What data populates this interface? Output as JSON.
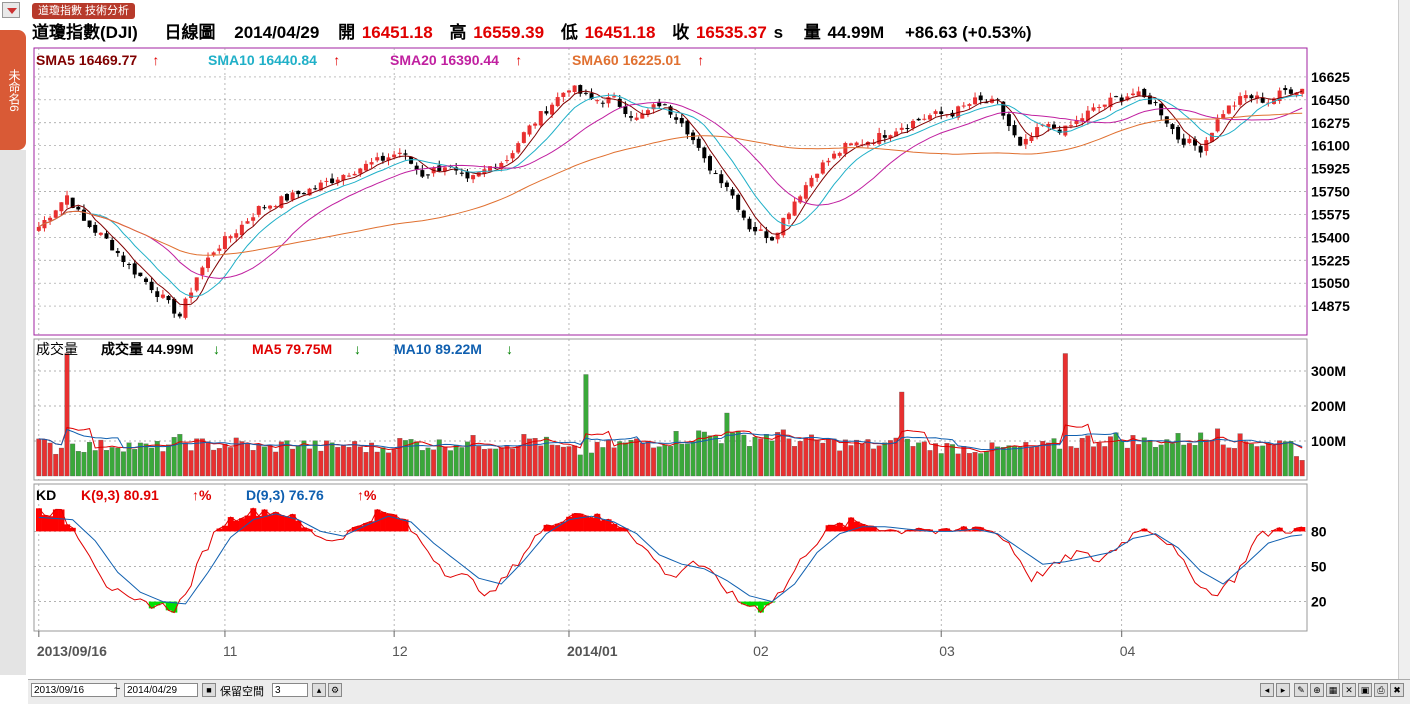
{
  "breadcrumb": "道瓊指數 技術分析",
  "side_tab_label": "未命名6",
  "header": {
    "name": "道瓊指數(DJI)",
    "period": "日線圖",
    "date": "2014/04/29",
    "open_label": "開",
    "open": "16451.18",
    "high_label": "高",
    "high": "16559.39",
    "low_label": "低",
    "low": "16451.18",
    "close_label": "收",
    "close": "16535.37",
    "close_suffix": "s",
    "vol_label": "量",
    "vol": "44.99M",
    "change": "+86.63 (+0.53%)"
  },
  "price_legend": [
    {
      "label": "SMA5 16469.77",
      "arrow": "↑",
      "color": "#800000"
    },
    {
      "label": "SMA10 16440.84",
      "arrow": "↑",
      "color": "#20b0c8"
    },
    {
      "label": "SMA20 16390.44",
      "arrow": "↑",
      "color": "#c020a0"
    },
    {
      "label": "SMA60 16225.01",
      "arrow": "↑",
      "color": "#e07030"
    }
  ],
  "volume_legend": {
    "title": "成交量",
    "items": [
      {
        "label": "成交量 44.99M",
        "arrow": "↓",
        "color": "#000"
      },
      {
        "label": "MA5 79.75M",
        "arrow": "↓",
        "color": "#e00000"
      },
      {
        "label": "MA10 89.22M",
        "arrow": "↓",
        "color": "#1060b0"
      }
    ]
  },
  "kd_legend": {
    "title": "KD",
    "items": [
      {
        "label": "K(9,3) 80.91",
        "arrow": "↑%",
        "color": "#e00000"
      },
      {
        "label": "D(9,3) 76.76",
        "arrow": "↑%",
        "color": "#1060b0"
      }
    ]
  },
  "bottom": {
    "start_date": "2013/09/16",
    "end_date": "2014/04/29",
    "reserve_label": "保留空間",
    "reserve_value": "3",
    "tilde": "~"
  },
  "colors": {
    "up": "#e83030",
    "down": "#000000",
    "vol_up": "#e83030",
    "vol_down": "#3aa83a",
    "kd_up_fill": "#ff0000",
    "kd_down_fill": "#00e000",
    "frame": "#a020a0"
  },
  "chart_data": {
    "type": "candlestick",
    "x_ticks": [
      "2013/09/16",
      "11",
      "12",
      "2014/01",
      "02",
      "03",
      "04"
    ],
    "x_tick_index": [
      0,
      33,
      63,
      94,
      127,
      160,
      192
    ],
    "price_axis": {
      "ticks": [
        16625,
        16450,
        16275,
        16100,
        15925,
        15750,
        15575,
        15400,
        15225,
        15050,
        14875
      ],
      "ylim": [
        14700,
        16800
      ]
    },
    "volume_axis": {
      "ticks": [
        "300M",
        "200M",
        "100M"
      ],
      "tick_values": [
        300,
        200,
        100
      ],
      "ylim": [
        0,
        380
      ]
    },
    "kd_axis": {
      "ticks": [
        80,
        50,
        20
      ],
      "ylim": [
        0,
        100
      ]
    },
    "close_anchors": [
      [
        0,
        15480
      ],
      [
        5,
        15720
      ],
      [
        8,
        15520
      ],
      [
        12,
        15380
      ],
      [
        16,
        15180
      ],
      [
        20,
        15020
      ],
      [
        25,
        14800
      ],
      [
        28,
        15100
      ],
      [
        31,
        15300
      ],
      [
        35,
        15450
      ],
      [
        39,
        15620
      ],
      [
        44,
        15700
      ],
      [
        49,
        15780
      ],
      [
        55,
        15900
      ],
      [
        60,
        15980
      ],
      [
        64,
        16050
      ],
      [
        68,
        15880
      ],
      [
        72,
        15950
      ],
      [
        76,
        15820
      ],
      [
        80,
        15940
      ],
      [
        83,
        16000
      ],
      [
        86,
        16190
      ],
      [
        90,
        16380
      ],
      [
        94,
        16550
      ],
      [
        98,
        16450
      ],
      [
        102,
        16450
      ],
      [
        106,
        16300
      ],
      [
        110,
        16420
      ],
      [
        114,
        16300
      ],
      [
        118,
        15980
      ],
      [
        122,
        15800
      ],
      [
        126,
        15480
      ],
      [
        130,
        15400
      ],
      [
        134,
        15680
      ],
      [
        138,
        15920
      ],
      [
        143,
        16090
      ],
      [
        148,
        16150
      ],
      [
        153,
        16250
      ],
      [
        158,
        16330
      ],
      [
        162,
        16350
      ],
      [
        166,
        16440
      ],
      [
        170,
        16420
      ],
      [
        174,
        16080
      ],
      [
        178,
        16250
      ],
      [
        182,
        16220
      ],
      [
        186,
        16350
      ],
      [
        190,
        16440
      ],
      [
        194,
        16500
      ],
      [
        198,
        16420
      ],
      [
        202,
        16160
      ],
      [
        206,
        16080
      ],
      [
        210,
        16360
      ],
      [
        214,
        16480
      ],
      [
        218,
        16440
      ],
      [
        221,
        16520
      ],
      [
        224,
        16535
      ]
    ],
    "volume_anchors": [
      [
        0,
        95
      ],
      [
        3,
        80
      ],
      [
        6,
        90
      ],
      [
        10,
        85
      ],
      [
        14,
        95
      ],
      [
        20,
        80
      ],
      [
        25,
        100
      ],
      [
        30,
        90
      ],
      [
        35,
        95
      ],
      [
        40,
        80
      ],
      [
        45,
        95
      ],
      [
        50,
        85
      ],
      [
        55,
        90
      ],
      [
        60,
        80
      ],
      [
        65,
        100
      ],
      [
        70,
        90
      ],
      [
        75,
        100
      ],
      [
        80,
        95
      ],
      [
        84,
        100
      ],
      [
        88,
        110
      ],
      [
        92,
        80
      ],
      [
        96,
        70
      ],
      [
        100,
        85
      ],
      [
        104,
        95
      ],
      [
        108,
        100
      ],
      [
        112,
        110
      ],
      [
        118,
        120
      ],
      [
        124,
        110
      ],
      [
        130,
        120
      ],
      [
        136,
        100
      ],
      [
        142,
        95
      ],
      [
        148,
        90
      ],
      [
        154,
        95
      ],
      [
        160,
        85
      ],
      [
        166,
        80
      ],
      [
        172,
        80
      ],
      [
        178,
        85
      ],
      [
        184,
        100
      ],
      [
        190,
        110
      ],
      [
        196,
        100
      ],
      [
        202,
        105
      ],
      [
        208,
        110
      ],
      [
        214,
        100
      ],
      [
        218,
        100
      ],
      [
        222,
        95
      ],
      [
        224,
        45
      ]
    ],
    "volume_spikes": [
      [
        5,
        350
      ],
      [
        97,
        290
      ],
      [
        122,
        180
      ],
      [
        153,
        240
      ],
      [
        182,
        350
      ],
      [
        209,
        135
      ]
    ],
    "kd_k_anchors": [
      [
        0,
        98
      ],
      [
        4,
        95
      ],
      [
        8,
        70
      ],
      [
        12,
        35
      ],
      [
        16,
        20
      ],
      [
        20,
        18
      ],
      [
        24,
        14
      ],
      [
        26,
        25
      ],
      [
        29,
        60
      ],
      [
        32,
        85
      ],
      [
        36,
        95
      ],
      [
        40,
        98
      ],
      [
        44,
        95
      ],
      [
        48,
        80
      ],
      [
        52,
        72
      ],
      [
        56,
        82
      ],
      [
        60,
        96
      ],
      [
        64,
        92
      ],
      [
        68,
        70
      ],
      [
        72,
        46
      ],
      [
        76,
        40
      ],
      [
        80,
        25
      ],
      [
        84,
        48
      ],
      [
        88,
        75
      ],
      [
        92,
        90
      ],
      [
        96,
        97
      ],
      [
        100,
        90
      ],
      [
        104,
        84
      ],
      [
        108,
        62
      ],
      [
        112,
        40
      ],
      [
        116,
        55
      ],
      [
        120,
        40
      ],
      [
        124,
        20
      ],
      [
        128,
        14
      ],
      [
        132,
        30
      ],
      [
        136,
        62
      ],
      [
        140,
        82
      ],
      [
        144,
        88
      ],
      [
        148,
        85
      ],
      [
        152,
        80
      ],
      [
        156,
        84
      ],
      [
        160,
        78
      ],
      [
        164,
        82
      ],
      [
        168,
        84
      ],
      [
        172,
        70
      ],
      [
        176,
        40
      ],
      [
        180,
        50
      ],
      [
        184,
        62
      ],
      [
        188,
        55
      ],
      [
        192,
        70
      ],
      [
        196,
        85
      ],
      [
        200,
        72
      ],
      [
        204,
        45
      ],
      [
        208,
        25
      ],
      [
        212,
        40
      ],
      [
        216,
        75
      ],
      [
        220,
        82
      ],
      [
        224,
        81
      ]
    ],
    "kd_d_anchors": [
      [
        0,
        92
      ],
      [
        6,
        90
      ],
      [
        10,
        72
      ],
      [
        14,
        45
      ],
      [
        18,
        28
      ],
      [
        22,
        20
      ],
      [
        26,
        18
      ],
      [
        30,
        45
      ],
      [
        34,
        75
      ],
      [
        38,
        90
      ],
      [
        42,
        95
      ],
      [
        46,
        90
      ],
      [
        50,
        80
      ],
      [
        54,
        76
      ],
      [
        58,
        85
      ],
      [
        62,
        93
      ],
      [
        66,
        88
      ],
      [
        70,
        70
      ],
      [
        74,
        55
      ],
      [
        78,
        40
      ],
      [
        82,
        35
      ],
      [
        86,
        55
      ],
      [
        90,
        78
      ],
      [
        94,
        90
      ],
      [
        98,
        93
      ],
      [
        102,
        88
      ],
      [
        106,
        78
      ],
      [
        110,
        60
      ],
      [
        114,
        52
      ],
      [
        118,
        48
      ],
      [
        122,
        38
      ],
      [
        126,
        25
      ],
      [
        130,
        20
      ],
      [
        134,
        35
      ],
      [
        138,
        62
      ],
      [
        142,
        78
      ],
      [
        146,
        84
      ],
      [
        150,
        84
      ],
      [
        154,
        82
      ],
      [
        158,
        80
      ],
      [
        162,
        80
      ],
      [
        166,
        82
      ],
      [
        170,
        78
      ],
      [
        174,
        65
      ],
      [
        178,
        52
      ],
      [
        182,
        54
      ],
      [
        186,
        58
      ],
      [
        190,
        62
      ],
      [
        194,
        74
      ],
      [
        198,
        78
      ],
      [
        202,
        66
      ],
      [
        206,
        46
      ],
      [
        210,
        35
      ],
      [
        214,
        52
      ],
      [
        218,
        70
      ],
      [
        222,
        76
      ],
      [
        224,
        77
      ]
    ],
    "n_bars": 225
  }
}
